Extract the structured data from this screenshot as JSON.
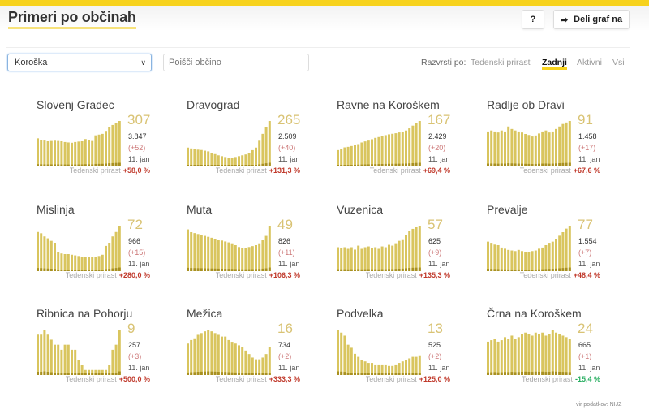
{
  "header": {
    "title": "Primeri po občinah",
    "help_label": "?",
    "share_label": "Deli graf na",
    "share_icon": "share-arrow-icon"
  },
  "filters": {
    "region": "Koroška",
    "search_placeholder": "Poišči občino",
    "sort_label": "Razvrsti po:",
    "sort_options": [
      "Tedenski prirast",
      "Zadnji",
      "Aktivni",
      "Vsi"
    ],
    "sort_active": "Zadnji"
  },
  "colors": {
    "accent": "#f7d21c",
    "bar": "#d9c55e",
    "bar_dark": "#a89020",
    "positive_change": "#c0392b",
    "negative_change": "#27ae60"
  },
  "weekly_label": "Tedenski prirast",
  "cards": [
    {
      "name": "Slovenj Gradec",
      "active": "307",
      "total": "3.847",
      "new": "(+52)",
      "date": "11. jan",
      "weekly": "+58,0 %",
      "trend": [
        190,
        180,
        175,
        170,
        172,
        174,
        172,
        170,
        165,
        162,
        160,
        165,
        168,
        170,
        185,
        178,
        172,
        210,
        215,
        220,
        240,
        265,
        280,
        295,
        307
      ]
    },
    {
      "name": "Dravograd",
      "active": "265",
      "total": "2.509",
      "new": "(+40)",
      "date": "11. jan",
      "weekly": "+131,3 %",
      "trend": [
        110,
        105,
        100,
        98,
        96,
        92,
        88,
        80,
        72,
        65,
        60,
        55,
        52,
        52,
        55,
        60,
        65,
        70,
        80,
        95,
        110,
        150,
        190,
        230,
        265
      ]
    },
    {
      "name": "Ravne na Koroškem",
      "active": "167",
      "total": "2.429",
      "new": "(+20)",
      "date": "11. jan",
      "weekly": "+69,4 %",
      "trend": [
        60,
        65,
        70,
        72,
        75,
        78,
        82,
        88,
        92,
        95,
        100,
        105,
        108,
        112,
        115,
        118,
        120,
        122,
        125,
        128,
        132,
        140,
        150,
        160,
        167
      ]
    },
    {
      "name": "Radlje ob Dravi",
      "active": "91",
      "total": "1.458",
      "new": "(+17)",
      "date": "11. jan",
      "weekly": "+67,6 %",
      "trend": [
        70,
        72,
        70,
        68,
        72,
        70,
        80,
        75,
        72,
        70,
        68,
        65,
        63,
        60,
        62,
        66,
        70,
        72,
        68,
        70,
        75,
        80,
        85,
        88,
        91
      ]
    },
    {
      "name": "Mislinja",
      "active": "72",
      "total": "966",
      "new": "(+15)",
      "date": "11. jan",
      "weekly": "+280,0 %",
      "trend": [
        62,
        60,
        55,
        52,
        48,
        45,
        30,
        28,
        27,
        27,
        26,
        25,
        24,
        22,
        22,
        22,
        22,
        22,
        24,
        26,
        40,
        45,
        55,
        62,
        72
      ]
    },
    {
      "name": "Muta",
      "active": "49",
      "total": "826",
      "new": "(+11)",
      "date": "11. jan",
      "weekly": "+106,3 %",
      "trend": [
        45,
        42,
        41,
        40,
        39,
        38,
        37,
        36,
        35,
        34,
        33,
        32,
        31,
        30,
        28,
        26,
        25,
        25,
        26,
        27,
        28,
        30,
        34,
        38,
        49
      ]
    },
    {
      "name": "Vuzenica",
      "active": "57",
      "total": "625",
      "new": "(+9)",
      "date": "11. jan",
      "weekly": "+135,3 %",
      "trend": [
        30,
        29,
        30,
        28,
        30,
        27,
        32,
        28,
        30,
        31,
        29,
        30,
        28,
        31,
        30,
        33,
        32,
        35,
        38,
        40,
        45,
        50,
        53,
        55,
        57
      ]
    },
    {
      "name": "Prevalje",
      "active": "77",
      "total": "1.554",
      "new": "(+7)",
      "date": "11. jan",
      "weekly": "+48,4 %",
      "trend": [
        50,
        48,
        45,
        44,
        40,
        38,
        36,
        35,
        34,
        36,
        34,
        33,
        32,
        34,
        35,
        38,
        40,
        44,
        48,
        50,
        55,
        60,
        66,
        72,
        77
      ]
    },
    {
      "name": "Ribnica na Pohorju",
      "active": "9",
      "total": "257",
      "new": "(+3)",
      "date": "11. jan",
      "weekly": "+500,0 %",
      "trend": [
        8,
        8,
        9,
        8,
        7,
        6,
        6,
        5,
        6,
        6,
        5,
        5,
        3,
        2,
        1,
        1,
        1,
        1,
        1,
        1,
        1,
        2,
        5,
        6,
        9
      ]
    },
    {
      "name": "Mežica",
      "active": "16",
      "total": "734",
      "new": "(+2)",
      "date": "11. jan",
      "weekly": "+333,3 %",
      "trend": [
        18,
        20,
        21,
        23,
        24,
        25,
        26,
        25,
        24,
        23,
        22,
        22,
        20,
        19,
        18,
        17,
        16,
        14,
        12,
        10,
        9,
        9,
        10,
        12,
        16
      ]
    },
    {
      "name": "Podvelka",
      "active": "13",
      "total": "525",
      "new": "(+2)",
      "date": "11. jan",
      "weekly": "+125,0 %",
      "trend": [
        30,
        28,
        26,
        20,
        18,
        14,
        12,
        10,
        9,
        8,
        8,
        7,
        7,
        7,
        7,
        6,
        6,
        7,
        8,
        9,
        10,
        11,
        12,
        12,
        13
      ]
    },
    {
      "name": "Črna na Koroškem",
      "active": "24",
      "total": "665",
      "new": "(+1)",
      "date": "11. jan",
      "weekly": "-15,4 %",
      "trend": [
        22,
        23,
        24,
        22,
        23,
        25,
        24,
        26,
        24,
        25,
        27,
        28,
        27,
        26,
        28,
        27,
        28,
        26,
        27,
        30,
        28,
        27,
        26,
        25,
        24
      ]
    }
  ],
  "source": "vir podatkov: NIJZ"
}
